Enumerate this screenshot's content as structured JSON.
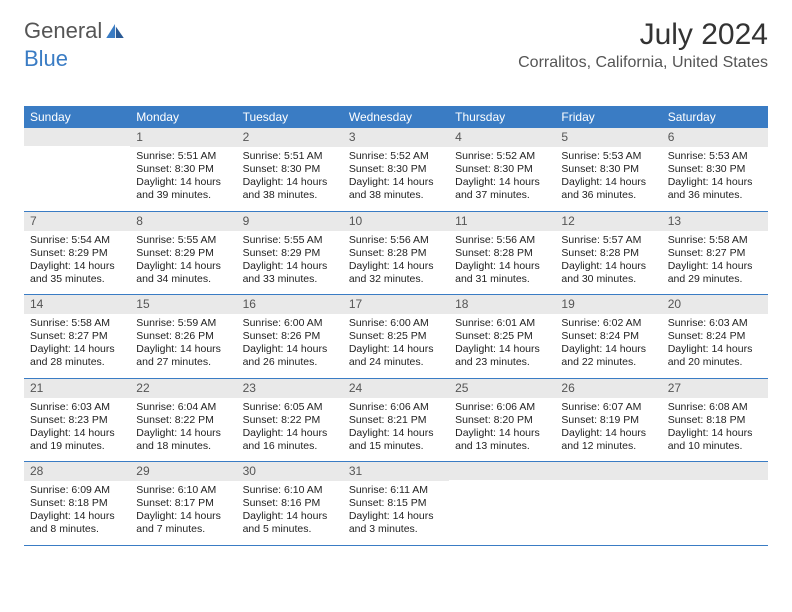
{
  "logo": {
    "word1": "General",
    "word2": "Blue"
  },
  "colors": {
    "brand": "#3a7cc4",
    "daynum_bg": "#e9e9e9",
    "text_muted": "#555",
    "text": "#222",
    "white": "#ffffff",
    "border": "#3a7cc4"
  },
  "title": "July 2024",
  "location": "Corralitos, California, United States",
  "dayNames": [
    "Sunday",
    "Monday",
    "Tuesday",
    "Wednesday",
    "Thursday",
    "Friday",
    "Saturday"
  ],
  "weeks": [
    [
      {
        "n": "",
        "sunrise": "",
        "sunset": "",
        "daylight": ""
      },
      {
        "n": "1",
        "sunrise": "Sunrise: 5:51 AM",
        "sunset": "Sunset: 8:30 PM",
        "daylight": "Daylight: 14 hours and 39 minutes."
      },
      {
        "n": "2",
        "sunrise": "Sunrise: 5:51 AM",
        "sunset": "Sunset: 8:30 PM",
        "daylight": "Daylight: 14 hours and 38 minutes."
      },
      {
        "n": "3",
        "sunrise": "Sunrise: 5:52 AM",
        "sunset": "Sunset: 8:30 PM",
        "daylight": "Daylight: 14 hours and 38 minutes."
      },
      {
        "n": "4",
        "sunrise": "Sunrise: 5:52 AM",
        "sunset": "Sunset: 8:30 PM",
        "daylight": "Daylight: 14 hours and 37 minutes."
      },
      {
        "n": "5",
        "sunrise": "Sunrise: 5:53 AM",
        "sunset": "Sunset: 8:30 PM",
        "daylight": "Daylight: 14 hours and 36 minutes."
      },
      {
        "n": "6",
        "sunrise": "Sunrise: 5:53 AM",
        "sunset": "Sunset: 8:30 PM",
        "daylight": "Daylight: 14 hours and 36 minutes."
      }
    ],
    [
      {
        "n": "7",
        "sunrise": "Sunrise: 5:54 AM",
        "sunset": "Sunset: 8:29 PM",
        "daylight": "Daylight: 14 hours and 35 minutes."
      },
      {
        "n": "8",
        "sunrise": "Sunrise: 5:55 AM",
        "sunset": "Sunset: 8:29 PM",
        "daylight": "Daylight: 14 hours and 34 minutes."
      },
      {
        "n": "9",
        "sunrise": "Sunrise: 5:55 AM",
        "sunset": "Sunset: 8:29 PM",
        "daylight": "Daylight: 14 hours and 33 minutes."
      },
      {
        "n": "10",
        "sunrise": "Sunrise: 5:56 AM",
        "sunset": "Sunset: 8:28 PM",
        "daylight": "Daylight: 14 hours and 32 minutes."
      },
      {
        "n": "11",
        "sunrise": "Sunrise: 5:56 AM",
        "sunset": "Sunset: 8:28 PM",
        "daylight": "Daylight: 14 hours and 31 minutes."
      },
      {
        "n": "12",
        "sunrise": "Sunrise: 5:57 AM",
        "sunset": "Sunset: 8:28 PM",
        "daylight": "Daylight: 14 hours and 30 minutes."
      },
      {
        "n": "13",
        "sunrise": "Sunrise: 5:58 AM",
        "sunset": "Sunset: 8:27 PM",
        "daylight": "Daylight: 14 hours and 29 minutes."
      }
    ],
    [
      {
        "n": "14",
        "sunrise": "Sunrise: 5:58 AM",
        "sunset": "Sunset: 8:27 PM",
        "daylight": "Daylight: 14 hours and 28 minutes."
      },
      {
        "n": "15",
        "sunrise": "Sunrise: 5:59 AM",
        "sunset": "Sunset: 8:26 PM",
        "daylight": "Daylight: 14 hours and 27 minutes."
      },
      {
        "n": "16",
        "sunrise": "Sunrise: 6:00 AM",
        "sunset": "Sunset: 8:26 PM",
        "daylight": "Daylight: 14 hours and 26 minutes."
      },
      {
        "n": "17",
        "sunrise": "Sunrise: 6:00 AM",
        "sunset": "Sunset: 8:25 PM",
        "daylight": "Daylight: 14 hours and 24 minutes."
      },
      {
        "n": "18",
        "sunrise": "Sunrise: 6:01 AM",
        "sunset": "Sunset: 8:25 PM",
        "daylight": "Daylight: 14 hours and 23 minutes."
      },
      {
        "n": "19",
        "sunrise": "Sunrise: 6:02 AM",
        "sunset": "Sunset: 8:24 PM",
        "daylight": "Daylight: 14 hours and 22 minutes."
      },
      {
        "n": "20",
        "sunrise": "Sunrise: 6:03 AM",
        "sunset": "Sunset: 8:24 PM",
        "daylight": "Daylight: 14 hours and 20 minutes."
      }
    ],
    [
      {
        "n": "21",
        "sunrise": "Sunrise: 6:03 AM",
        "sunset": "Sunset: 8:23 PM",
        "daylight": "Daylight: 14 hours and 19 minutes."
      },
      {
        "n": "22",
        "sunrise": "Sunrise: 6:04 AM",
        "sunset": "Sunset: 8:22 PM",
        "daylight": "Daylight: 14 hours and 18 minutes."
      },
      {
        "n": "23",
        "sunrise": "Sunrise: 6:05 AM",
        "sunset": "Sunset: 8:22 PM",
        "daylight": "Daylight: 14 hours and 16 minutes."
      },
      {
        "n": "24",
        "sunrise": "Sunrise: 6:06 AM",
        "sunset": "Sunset: 8:21 PM",
        "daylight": "Daylight: 14 hours and 15 minutes."
      },
      {
        "n": "25",
        "sunrise": "Sunrise: 6:06 AM",
        "sunset": "Sunset: 8:20 PM",
        "daylight": "Daylight: 14 hours and 13 minutes."
      },
      {
        "n": "26",
        "sunrise": "Sunrise: 6:07 AM",
        "sunset": "Sunset: 8:19 PM",
        "daylight": "Daylight: 14 hours and 12 minutes."
      },
      {
        "n": "27",
        "sunrise": "Sunrise: 6:08 AM",
        "sunset": "Sunset: 8:18 PM",
        "daylight": "Daylight: 14 hours and 10 minutes."
      }
    ],
    [
      {
        "n": "28",
        "sunrise": "Sunrise: 6:09 AM",
        "sunset": "Sunset: 8:18 PM",
        "daylight": "Daylight: 14 hours and 8 minutes."
      },
      {
        "n": "29",
        "sunrise": "Sunrise: 6:10 AM",
        "sunset": "Sunset: 8:17 PM",
        "daylight": "Daylight: 14 hours and 7 minutes."
      },
      {
        "n": "30",
        "sunrise": "Sunrise: 6:10 AM",
        "sunset": "Sunset: 8:16 PM",
        "daylight": "Daylight: 14 hours and 5 minutes."
      },
      {
        "n": "31",
        "sunrise": "Sunrise: 6:11 AM",
        "sunset": "Sunset: 8:15 PM",
        "daylight": "Daylight: 14 hours and 3 minutes."
      },
      {
        "n": "",
        "sunrise": "",
        "sunset": "",
        "daylight": ""
      },
      {
        "n": "",
        "sunrise": "",
        "sunset": "",
        "daylight": ""
      },
      {
        "n": "",
        "sunrise": "",
        "sunset": "",
        "daylight": ""
      }
    ]
  ]
}
